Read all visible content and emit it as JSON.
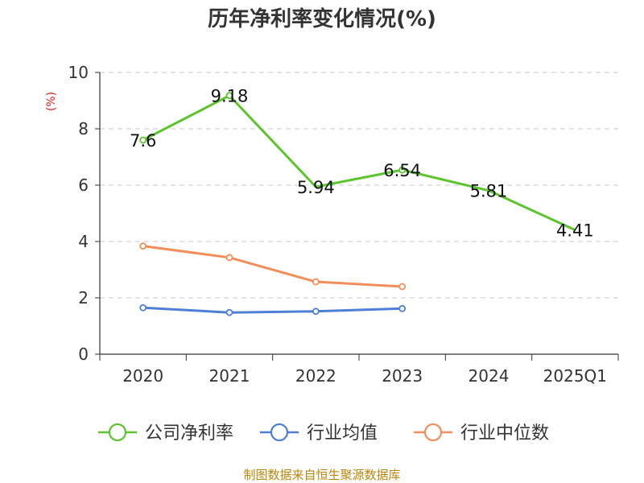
{
  "chart_data": {
    "type": "line",
    "title": "历年净利率变化情况(%)",
    "ylabel": "(%)",
    "xlabel": "",
    "categories": [
      "2020",
      "2021",
      "2022",
      "2023",
      "2024",
      "2025Q1"
    ],
    "ylim": [
      0,
      10
    ],
    "yticks": [
      0,
      2,
      4,
      6,
      8,
      10
    ],
    "grid": true,
    "legend_position": "bottom",
    "series": [
      {
        "name": "公司净利率",
        "color": "#5cc52e",
        "values": [
          7.6,
          9.18,
          5.94,
          6.54,
          5.81,
          4.41
        ],
        "labels": [
          "7.6",
          "9.18",
          "5.94",
          "6.54",
          "5.81",
          "4.41"
        ],
        "show_labels": true,
        "show_markers": [
          true,
          true,
          false,
          true,
          false,
          false
        ]
      },
      {
        "name": "行业均值",
        "color": "#4e7fd6",
        "values": [
          1.65,
          1.48,
          1.52,
          1.62,
          null,
          null
        ],
        "show_labels": false,
        "show_markers": [
          true,
          true,
          true,
          true,
          false,
          false
        ]
      },
      {
        "name": "行业中位数",
        "color": "#f28e5a",
        "values": [
          3.84,
          3.43,
          2.57,
          2.4,
          null,
          null
        ],
        "show_labels": false,
        "show_markers": [
          true,
          true,
          true,
          true,
          false,
          false
        ]
      }
    ]
  },
  "source": "制图数据来自恒生聚源数据库"
}
